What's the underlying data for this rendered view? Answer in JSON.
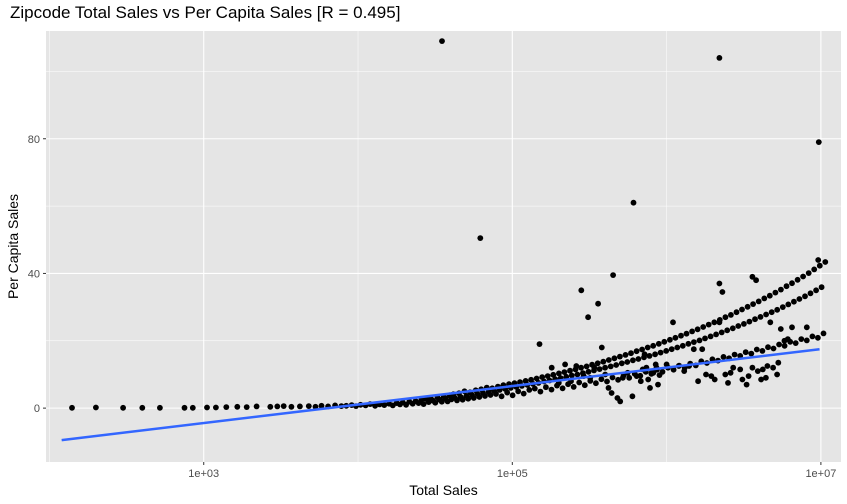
{
  "chart_data": {
    "type": "scatter",
    "title": "Zipcode Total Sales vs Per Capita Sales [R = 0.495]",
    "xlabel": "Total Sales",
    "ylabel": "Per Capita Sales",
    "x_scale": "log10",
    "xlim": [
      95,
      13500000
    ],
    "ylim": [
      -16,
      112
    ],
    "x_ticks": [
      {
        "value": 1000,
        "label": "1e+03"
      },
      {
        "value": 100000,
        "label": "1e+05"
      },
      {
        "value": 10000000,
        "label": "1e+07"
      }
    ],
    "y_ticks": [
      {
        "value": 0,
        "label": "0"
      },
      {
        "value": 40,
        "label": "40"
      },
      {
        "value": 80,
        "label": "80"
      }
    ],
    "grid": true,
    "point_color": "#000000",
    "trend_color": "#3366ff",
    "panel_background": "#e5e5e5",
    "trend_line": {
      "x": [
        120,
        9800000
      ],
      "y": [
        -9.5,
        17.5
      ]
    },
    "points": [
      [
        140,
        0.1
      ],
      [
        200,
        0.2
      ],
      [
        300,
        0.1
      ],
      [
        400,
        0.1
      ],
      [
        520,
        0.1
      ],
      [
        750,
        0.1
      ],
      [
        850,
        0.1
      ],
      [
        1050,
        0.2
      ],
      [
        1200,
        0.2
      ],
      [
        1400,
        0.3
      ],
      [
        1650,
        0.4
      ],
      [
        1900,
        0.3
      ],
      [
        2200,
        0.5
      ],
      [
        2700,
        0.4
      ],
      [
        3000,
        0.5
      ],
      [
        3300,
        0.6
      ],
      [
        3700,
        0.4
      ],
      [
        4200,
        0.5
      ],
      [
        4800,
        0.6
      ],
      [
        5300,
        0.4
      ],
      [
        5800,
        0.7
      ],
      [
        6400,
        0.5
      ],
      [
        7100,
        0.8
      ],
      [
        7800,
        0.6
      ],
      [
        8400,
        0.7
      ],
      [
        9100,
        0.9
      ],
      [
        9700,
        0.6
      ],
      [
        10400,
        1
      ],
      [
        11200,
        0.8
      ],
      [
        12000,
        1.2
      ],
      [
        12900,
        0.7
      ],
      [
        13800,
        1.1
      ],
      [
        14800,
        0.9
      ],
      [
        15900,
        1.3
      ],
      [
        16800,
        0.8
      ],
      [
        17800,
        1.5
      ],
      [
        18700,
        1.1
      ],
      [
        19500,
        1.7
      ],
      [
        20500,
        1
      ],
      [
        21500,
        1.9
      ],
      [
        22600,
        1.3
      ],
      [
        23600,
        2.1
      ],
      [
        24700,
        1.5
      ],
      [
        25700,
        2.4
      ],
      [
        26600,
        1.2
      ],
      [
        27600,
        2.7
      ],
      [
        28700,
        1.8
      ],
      [
        29600,
        3
      ],
      [
        30600,
        2.2
      ],
      [
        31700,
        1.6
      ],
      [
        32700,
        3.2
      ],
      [
        33800,
        2.5
      ],
      [
        34900,
        1.9
      ],
      [
        35900,
        3.5
      ],
      [
        37000,
        2.8
      ],
      [
        38100,
        2
      ],
      [
        39200,
        3.8
      ],
      [
        40300,
        2.6
      ],
      [
        41500,
        4.1
      ],
      [
        42600,
        3
      ],
      [
        43800,
        2.3
      ],
      [
        45100,
        4.4
      ],
      [
        46300,
        3.3
      ],
      [
        47600,
        2.5
      ],
      [
        49000,
        5
      ],
      [
        50400,
        3.6
      ],
      [
        51800,
        2.8
      ],
      [
        53300,
        4.7
      ],
      [
        54800,
        3.9
      ],
      [
        56300,
        3
      ],
      [
        57900,
        5.3
      ],
      [
        59500,
        4.2
      ],
      [
        61200,
        3.3
      ],
      [
        62900,
        5.6
      ],
      [
        64600,
        4.5
      ],
      [
        66500,
        3.6
      ],
      [
        68300,
        6.1
      ],
      [
        70200,
        4.8
      ],
      [
        72200,
        3.9
      ],
      [
        74200,
        5.9
      ],
      [
        76300,
        5.1
      ],
      [
        78400,
        4.2
      ],
      [
        80600,
        6.4
      ],
      [
        82900,
        5.4
      ],
      [
        85200,
        3.5
      ],
      [
        87600,
        6.8
      ],
      [
        90000,
        5.7
      ],
      [
        92600,
        4.6
      ],
      [
        95200,
        7.1
      ],
      [
        97800,
        6
      ],
      [
        100500,
        3.8
      ],
      [
        103300,
        7.4
      ],
      [
        106200,
        6.3
      ],
      [
        109200,
        5
      ],
      [
        112200,
        7.7
      ],
      [
        115400,
        6.6
      ],
      [
        118600,
        4.3
      ],
      [
        121900,
        8.1
      ],
      [
        125300,
        6.9
      ],
      [
        128800,
        5.4
      ],
      [
        132400,
        8.4
      ],
      [
        136100,
        7.2
      ],
      [
        139900,
        5.8
      ],
      [
        143800,
        8.8
      ],
      [
        147900,
        7.5
      ],
      [
        152000,
        4.9
      ],
      [
        156300,
        9.2
      ],
      [
        160600,
        7.9
      ],
      [
        165100,
        6.2
      ],
      [
        169700,
        9.5
      ],
      [
        174500,
        8.2
      ],
      [
        179400,
        5.5
      ],
      [
        184400,
        9.9
      ],
      [
        189600,
        8.6
      ],
      [
        194900,
        6.7
      ],
      [
        200300,
        10.3
      ],
      [
        205900,
        8.9
      ],
      [
        211700,
        5.9
      ],
      [
        217600,
        10.7
      ],
      [
        223700,
        9.3
      ],
      [
        230000,
        7.1
      ],
      [
        236400,
        11.1
      ],
      [
        243000,
        9.7
      ],
      [
        249800,
        6.3
      ],
      [
        256800,
        11.5
      ],
      [
        264000,
        10
      ],
      [
        271400,
        7.6
      ],
      [
        279000,
        12
      ],
      [
        286800,
        10.4
      ],
      [
        294800,
        6.8
      ],
      [
        303100,
        12.4
      ],
      [
        311600,
        10.8
      ],
      [
        320300,
        8.1
      ],
      [
        329200,
        12.9
      ],
      [
        338500,
        11.2
      ],
      [
        348000,
        7.4
      ],
      [
        357700,
        13.3
      ],
      [
        367700,
        11.6
      ],
      [
        378000,
        8.6
      ],
      [
        388600,
        13.8
      ],
      [
        399500,
        12
      ],
      [
        410700,
        7.9
      ],
      [
        422200,
        14.3
      ],
      [
        434000,
        12.4
      ],
      [
        446200,
        9.1
      ],
      [
        458700,
        14.8
      ],
      [
        471500,
        12.8
      ],
      [
        484700,
        8.4
      ],
      [
        498300,
        15.3
      ],
      [
        512200,
        13.3
      ],
      [
        526600,
        9.7
      ],
      [
        541300,
        15.8
      ],
      [
        556500,
        13.7
      ],
      [
        572100,
        9
      ],
      [
        588100,
        16.3
      ],
      [
        604500,
        14.2
      ],
      [
        621500,
        10.2
      ],
      [
        638900,
        16.9
      ],
      [
        656800,
        14.6
      ],
      [
        675100,
        9.6
      ],
      [
        694100,
        17.4
      ],
      [
        713500,
        15.1
      ],
      [
        733500,
        10.8
      ],
      [
        754000,
        18
      ],
      [
        775100,
        15.5
      ],
      [
        796800,
        10.2
      ],
      [
        819100,
        18.5
      ],
      [
        842000,
        16
      ],
      [
        865600,
        11.4
      ],
      [
        889900,
        19.1
      ],
      [
        914800,
        16.5
      ],
      [
        940400,
        10.8
      ],
      [
        966700,
        19.7
      ],
      [
        993800,
        17
      ],
      [
        1021600,
        12
      ],
      [
        1050200,
        20.3
      ],
      [
        1079600,
        17.5
      ],
      [
        1109800,
        11.4
      ],
      [
        1140900,
        20.9
      ],
      [
        1172800,
        18
      ],
      [
        1205700,
        12.6
      ],
      [
        1239400,
        21.5
      ],
      [
        1274100,
        18.5
      ],
      [
        1309800,
        12
      ],
      [
        1346500,
        22.1
      ],
      [
        1384200,
        19.1
      ],
      [
        1422900,
        13.2
      ],
      [
        1462800,
        22.8
      ],
      [
        1503700,
        19.6
      ],
      [
        1545800,
        12.7
      ],
      [
        1589100,
        23.4
      ],
      [
        1633600,
        20.1
      ],
      [
        1679300,
        13.9
      ],
      [
        1726400,
        24.1
      ],
      [
        1774700,
        20.7
      ],
      [
        1824400,
        13.4
      ],
      [
        1875400,
        24.8
      ],
      [
        1927900,
        21.3
      ],
      [
        1981900,
        14.5
      ],
      [
        2037400,
        25.5
      ],
      [
        2094500,
        21.9
      ],
      [
        2153100,
        14.1
      ],
      [
        2213400,
        26.2
      ],
      [
        2275400,
        22.5
      ],
      [
        2339100,
        15.2
      ],
      [
        2404600,
        27
      ],
      [
        2471900,
        23.1
      ],
      [
        2541100,
        14.8
      ],
      [
        2612300,
        27.7
      ],
      [
        2685400,
        23.7
      ],
      [
        2760600,
        15.9
      ],
      [
        2837900,
        28.5
      ],
      [
        2917400,
        24.4
      ],
      [
        2999100,
        15.5
      ],
      [
        3083000,
        29.3
      ],
      [
        3169400,
        25
      ],
      [
        3258100,
        16.6
      ],
      [
        3349300,
        30.1
      ],
      [
        3443100,
        25.7
      ],
      [
        3539500,
        16.2
      ],
      [
        3638600,
        30.9
      ],
      [
        3740500,
        26.4
      ],
      [
        3845300,
        17.4
      ],
      [
        3952900,
        31.7
      ],
      [
        4063600,
        27.1
      ],
      [
        4177400,
        17
      ],
      [
        4294400,
        32.6
      ],
      [
        4414600,
        27.8
      ],
      [
        4538200,
        18.1
      ],
      [
        4665300,
        33.4
      ],
      [
        4795900,
        28.5
      ],
      [
        4930200,
        17.7
      ],
      [
        5068300,
        34.3
      ],
      [
        5210200,
        29.2
      ],
      [
        5356100,
        18.9
      ],
      [
        5506000,
        35.2
      ],
      [
        5660200,
        30
      ],
      [
        5818700,
        18.5
      ],
      [
        5981600,
        36.2
      ],
      [
        6149100,
        30.8
      ],
      [
        6321300,
        19.7
      ],
      [
        6498300,
        37.1
      ],
      [
        6680200,
        31.6
      ],
      [
        6867300,
        19.3
      ],
      [
        7059600,
        38.1
      ],
      [
        7257200,
        32.4
      ],
      [
        7460400,
        20.5
      ],
      [
        7669300,
        39.1
      ],
      [
        7884100,
        33.2
      ],
      [
        8104800,
        20.1
      ],
      [
        8331800,
        40.1
      ],
      [
        8565100,
        34.1
      ],
      [
        8804900,
        21.3
      ],
      [
        9051400,
        41.2
      ],
      [
        9304900,
        35
      ],
      [
        9565400,
        20.9
      ],
      [
        9833300,
        42.3
      ],
      [
        10108600,
        35.9
      ],
      [
        10391600,
        22.2
      ],
      [
        10682600,
        43.4
      ],
      [
        35000,
        109
      ],
      [
        2200000,
        104
      ],
      [
        9700000,
        79
      ],
      [
        610000,
        61
      ],
      [
        62000,
        50.5
      ],
      [
        450000,
        39.5
      ],
      [
        3600000,
        39
      ],
      [
        2200000,
        37
      ],
      [
        280000,
        35
      ],
      [
        2300000,
        34.5
      ],
      [
        9600000,
        44
      ],
      [
        3800000,
        38
      ],
      [
        360000,
        31
      ],
      [
        310000,
        27
      ],
      [
        150000,
        19
      ],
      [
        1100000,
        25.5
      ],
      [
        2200000,
        25.5
      ],
      [
        4700000,
        25.5
      ],
      [
        5500000,
        23.5
      ],
      [
        6500000,
        24
      ],
      [
        8100000,
        24
      ],
      [
        380000,
        18
      ],
      [
        720000,
        16
      ],
      [
        1500000,
        17.5
      ],
      [
        1700000,
        17.5
      ],
      [
        5800000,
        20
      ],
      [
        6100000,
        20.5
      ],
      [
        900000,
        9.8
      ],
      [
        1300000,
        11
      ],
      [
        1950000,
        9.5
      ],
      [
        2600000,
        10.5
      ],
      [
        3100000,
        8.5
      ],
      [
        4200000,
        11.5
      ],
      [
        4400000,
        9
      ],
      [
        3400000,
        9.5
      ],
      [
        5200000,
        10
      ],
      [
        800000,
        10.5
      ],
      [
        850000,
        13
      ],
      [
        1000000,
        13
      ],
      [
        1200000,
        12.5
      ],
      [
        1400000,
        12.5
      ],
      [
        1600000,
        8
      ],
      [
        1800000,
        10
      ],
      [
        2050000,
        8.5
      ],
      [
        2400000,
        10
      ],
      [
        2500000,
        7.5
      ],
      [
        2700000,
        12
      ],
      [
        3000000,
        11.5
      ],
      [
        3300000,
        7
      ],
      [
        3600000,
        12
      ],
      [
        3900000,
        11
      ],
      [
        4100000,
        8.5
      ],
      [
        4500000,
        12.5
      ],
      [
        4900000,
        12
      ],
      [
        5300000,
        13.5
      ],
      [
        180000,
        12
      ],
      [
        200000,
        7.5
      ],
      [
        220000,
        13
      ],
      [
        240000,
        8
      ],
      [
        260000,
        12.5
      ],
      [
        290000,
        9.5
      ],
      [
        320000,
        9
      ],
      [
        340000,
        12
      ],
      [
        400000,
        10
      ],
      [
        420000,
        6
      ],
      [
        440000,
        4.5
      ],
      [
        480000,
        3
      ],
      [
        500000,
        2
      ],
      [
        520000,
        9
      ],
      [
        560000,
        10.5
      ],
      [
        600000,
        3.5
      ],
      [
        640000,
        9.5
      ],
      [
        680000,
        8
      ],
      [
        700000,
        11.5
      ],
      [
        740000,
        12
      ],
      [
        760000,
        8.5
      ],
      [
        780000,
        6
      ],
      [
        820000,
        10.5
      ],
      [
        860000,
        12
      ],
      [
        880000,
        7
      ]
    ]
  }
}
